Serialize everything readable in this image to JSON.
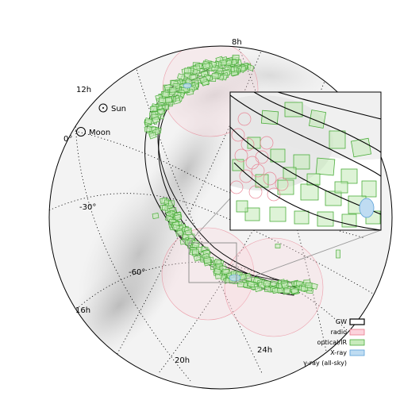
{
  "chart_data": {
    "type": "scatter",
    "title": "",
    "projection": "orthographic sky globe",
    "ra_labels": [
      "8h",
      "12h",
      "16h",
      "20h",
      "24h"
    ],
    "dec_labels": [
      "0°",
      "-30°",
      "-60°"
    ],
    "markers": [
      {
        "label": "Sun",
        "icon": "sun-icon"
      },
      {
        "label": "Moon",
        "icon": "moon-icon"
      }
    ],
    "legend": {
      "placement": "bottom-right",
      "entries": [
        {
          "label": "GW",
          "color": "#000000",
          "fill": "#ffffff"
        },
        {
          "label": "radio",
          "color": "#e87a8c",
          "fill": "#fcd3dc"
        },
        {
          "label": "optical/IR",
          "color": "#4cae3c",
          "fill": "#c8ebbc"
        },
        {
          "label": "X-ray",
          "color": "#5aa0d8",
          "fill": "#bfdcf2"
        },
        {
          "label": "γ-ray (all-sky)",
          "color": "#ffffff",
          "fill": "#ffffff"
        }
      ]
    },
    "colors": {
      "gw": "#000000",
      "radio": "#e87a8c",
      "optical": "#4cae3c",
      "xray": "#5aa0d8",
      "milky_way": "#b8b8b8"
    },
    "inset": true
  }
}
